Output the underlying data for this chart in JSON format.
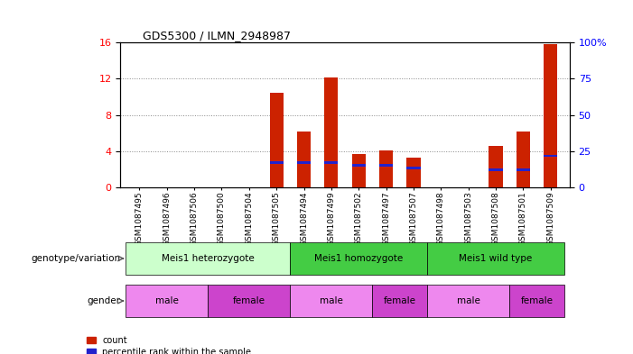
{
  "title": "GDS5300 / ILMN_2948987",
  "samples": [
    "GSM1087495",
    "GSM1087496",
    "GSM1087506",
    "GSM1087500",
    "GSM1087504",
    "GSM1087505",
    "GSM1087494",
    "GSM1087499",
    "GSM1087502",
    "GSM1087497",
    "GSM1087507",
    "GSM1087498",
    "GSM1087503",
    "GSM1087508",
    "GSM1087501",
    "GSM1087509"
  ],
  "count_values": [
    0,
    0,
    0,
    0,
    0,
    10.5,
    6.2,
    12.1,
    3.7,
    4.1,
    3.3,
    0,
    0,
    4.6,
    6.2,
    15.8
  ],
  "percentile_values": [
    0,
    0,
    0,
    0,
    0,
    17.5,
    17.5,
    17.5,
    15.6,
    15.6,
    13.75,
    0,
    0,
    12.5,
    12.5,
    21.875
  ],
  "ylim_left": [
    0,
    16
  ],
  "ylim_right": [
    0,
    100
  ],
  "yticks_left": [
    0,
    4,
    8,
    12,
    16
  ],
  "yticks_right": [
    0,
    25,
    50,
    75,
    100
  ],
  "bar_color": "#cc2200",
  "percentile_color": "#2222cc",
  "grid_color": "#888888",
  "geno_light": "#ccffcc",
  "geno_dark": "#44cc44",
  "male_color": "#ee88ee",
  "female_color": "#cc44cc",
  "geno_groups": [
    {
      "label": "Meis1 heterozygote",
      "start": 0,
      "end": 5,
      "color_key": "geno_light"
    },
    {
      "label": "Meis1 homozygote",
      "start": 6,
      "end": 10,
      "color_key": "geno_dark"
    },
    {
      "label": "Meis1 wild type",
      "start": 11,
      "end": 15,
      "color_key": "geno_dark"
    }
  ],
  "gender_groups": [
    {
      "label": "male",
      "start": 0,
      "end": 2,
      "color_key": "male_color"
    },
    {
      "label": "female",
      "start": 3,
      "end": 5,
      "color_key": "female_color"
    },
    {
      "label": "male",
      "start": 6,
      "end": 8,
      "color_key": "male_color"
    },
    {
      "label": "female",
      "start": 9,
      "end": 10,
      "color_key": "female_color"
    },
    {
      "label": "male",
      "start": 11,
      "end": 13,
      "color_key": "male_color"
    },
    {
      "label": "female",
      "start": 14,
      "end": 15,
      "color_key": "female_color"
    }
  ],
  "legend_count_label": "count",
  "legend_pct_label": "percentile rank within the sample",
  "genotype_label": "genotype/variation",
  "gender_label": "gender",
  "bar_width": 0.5
}
